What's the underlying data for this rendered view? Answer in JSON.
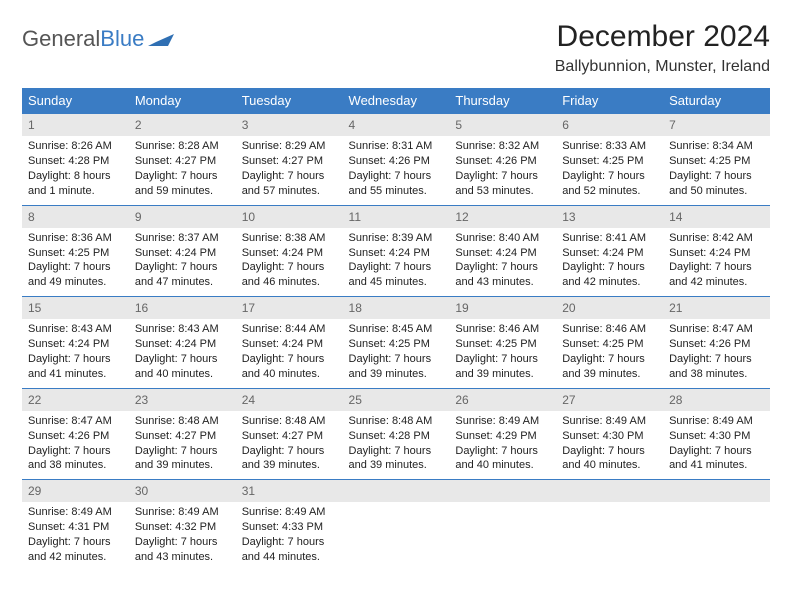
{
  "logo": {
    "text1": "General",
    "text2": "Blue"
  },
  "title": "December 2024",
  "location": "Ballybunnion, Munster, Ireland",
  "colors": {
    "header_bg": "#3a7cc4",
    "header_text": "#ffffff",
    "daynum_bg": "#e8e8e8",
    "daynum_text": "#666666",
    "body_text": "#222222",
    "row_border": "#3a7cc4"
  },
  "weekdays": [
    "Sunday",
    "Monday",
    "Tuesday",
    "Wednesday",
    "Thursday",
    "Friday",
    "Saturday"
  ],
  "weeks": [
    [
      {
        "n": "1",
        "sr": "Sunrise: 8:26 AM",
        "ss": "Sunset: 4:28 PM",
        "dl": "Daylight: 8 hours and 1 minute."
      },
      {
        "n": "2",
        "sr": "Sunrise: 8:28 AM",
        "ss": "Sunset: 4:27 PM",
        "dl": "Daylight: 7 hours and 59 minutes."
      },
      {
        "n": "3",
        "sr": "Sunrise: 8:29 AM",
        "ss": "Sunset: 4:27 PM",
        "dl": "Daylight: 7 hours and 57 minutes."
      },
      {
        "n": "4",
        "sr": "Sunrise: 8:31 AM",
        "ss": "Sunset: 4:26 PM",
        "dl": "Daylight: 7 hours and 55 minutes."
      },
      {
        "n": "5",
        "sr": "Sunrise: 8:32 AM",
        "ss": "Sunset: 4:26 PM",
        "dl": "Daylight: 7 hours and 53 minutes."
      },
      {
        "n": "6",
        "sr": "Sunrise: 8:33 AM",
        "ss": "Sunset: 4:25 PM",
        "dl": "Daylight: 7 hours and 52 minutes."
      },
      {
        "n": "7",
        "sr": "Sunrise: 8:34 AM",
        "ss": "Sunset: 4:25 PM",
        "dl": "Daylight: 7 hours and 50 minutes."
      }
    ],
    [
      {
        "n": "8",
        "sr": "Sunrise: 8:36 AM",
        "ss": "Sunset: 4:25 PM",
        "dl": "Daylight: 7 hours and 49 minutes."
      },
      {
        "n": "9",
        "sr": "Sunrise: 8:37 AM",
        "ss": "Sunset: 4:24 PM",
        "dl": "Daylight: 7 hours and 47 minutes."
      },
      {
        "n": "10",
        "sr": "Sunrise: 8:38 AM",
        "ss": "Sunset: 4:24 PM",
        "dl": "Daylight: 7 hours and 46 minutes."
      },
      {
        "n": "11",
        "sr": "Sunrise: 8:39 AM",
        "ss": "Sunset: 4:24 PM",
        "dl": "Daylight: 7 hours and 45 minutes."
      },
      {
        "n": "12",
        "sr": "Sunrise: 8:40 AM",
        "ss": "Sunset: 4:24 PM",
        "dl": "Daylight: 7 hours and 43 minutes."
      },
      {
        "n": "13",
        "sr": "Sunrise: 8:41 AM",
        "ss": "Sunset: 4:24 PM",
        "dl": "Daylight: 7 hours and 42 minutes."
      },
      {
        "n": "14",
        "sr": "Sunrise: 8:42 AM",
        "ss": "Sunset: 4:24 PM",
        "dl": "Daylight: 7 hours and 42 minutes."
      }
    ],
    [
      {
        "n": "15",
        "sr": "Sunrise: 8:43 AM",
        "ss": "Sunset: 4:24 PM",
        "dl": "Daylight: 7 hours and 41 minutes."
      },
      {
        "n": "16",
        "sr": "Sunrise: 8:43 AM",
        "ss": "Sunset: 4:24 PM",
        "dl": "Daylight: 7 hours and 40 minutes."
      },
      {
        "n": "17",
        "sr": "Sunrise: 8:44 AM",
        "ss": "Sunset: 4:24 PM",
        "dl": "Daylight: 7 hours and 40 minutes."
      },
      {
        "n": "18",
        "sr": "Sunrise: 8:45 AM",
        "ss": "Sunset: 4:25 PM",
        "dl": "Daylight: 7 hours and 39 minutes."
      },
      {
        "n": "19",
        "sr": "Sunrise: 8:46 AM",
        "ss": "Sunset: 4:25 PM",
        "dl": "Daylight: 7 hours and 39 minutes."
      },
      {
        "n": "20",
        "sr": "Sunrise: 8:46 AM",
        "ss": "Sunset: 4:25 PM",
        "dl": "Daylight: 7 hours and 39 minutes."
      },
      {
        "n": "21",
        "sr": "Sunrise: 8:47 AM",
        "ss": "Sunset: 4:26 PM",
        "dl": "Daylight: 7 hours and 38 minutes."
      }
    ],
    [
      {
        "n": "22",
        "sr": "Sunrise: 8:47 AM",
        "ss": "Sunset: 4:26 PM",
        "dl": "Daylight: 7 hours and 38 minutes."
      },
      {
        "n": "23",
        "sr": "Sunrise: 8:48 AM",
        "ss": "Sunset: 4:27 PM",
        "dl": "Daylight: 7 hours and 39 minutes."
      },
      {
        "n": "24",
        "sr": "Sunrise: 8:48 AM",
        "ss": "Sunset: 4:27 PM",
        "dl": "Daylight: 7 hours and 39 minutes."
      },
      {
        "n": "25",
        "sr": "Sunrise: 8:48 AM",
        "ss": "Sunset: 4:28 PM",
        "dl": "Daylight: 7 hours and 39 minutes."
      },
      {
        "n": "26",
        "sr": "Sunrise: 8:49 AM",
        "ss": "Sunset: 4:29 PM",
        "dl": "Daylight: 7 hours and 40 minutes."
      },
      {
        "n": "27",
        "sr": "Sunrise: 8:49 AM",
        "ss": "Sunset: 4:30 PM",
        "dl": "Daylight: 7 hours and 40 minutes."
      },
      {
        "n": "28",
        "sr": "Sunrise: 8:49 AM",
        "ss": "Sunset: 4:30 PM",
        "dl": "Daylight: 7 hours and 41 minutes."
      }
    ],
    [
      {
        "n": "29",
        "sr": "Sunrise: 8:49 AM",
        "ss": "Sunset: 4:31 PM",
        "dl": "Daylight: 7 hours and 42 minutes."
      },
      {
        "n": "30",
        "sr": "Sunrise: 8:49 AM",
        "ss": "Sunset: 4:32 PM",
        "dl": "Daylight: 7 hours and 43 minutes."
      },
      {
        "n": "31",
        "sr": "Sunrise: 8:49 AM",
        "ss": "Sunset: 4:33 PM",
        "dl": "Daylight: 7 hours and 44 minutes."
      },
      {
        "n": "",
        "sr": "",
        "ss": "",
        "dl": ""
      },
      {
        "n": "",
        "sr": "",
        "ss": "",
        "dl": ""
      },
      {
        "n": "",
        "sr": "",
        "ss": "",
        "dl": ""
      },
      {
        "n": "",
        "sr": "",
        "ss": "",
        "dl": ""
      }
    ]
  ]
}
